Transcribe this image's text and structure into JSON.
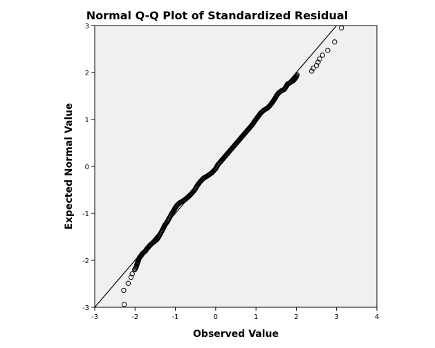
{
  "chart_data": {
    "type": "scatter",
    "title": "Normal Q-Q Plot of Standardized Residual",
    "xlabel": "Observed Value",
    "ylabel": "Expected Normal Value",
    "xlim": [
      -3,
      4
    ],
    "ylim": [
      -3,
      3
    ],
    "xticks": [
      -3,
      -2,
      -1,
      0,
      1,
      2,
      3,
      4
    ],
    "xtick_labels": [
      "-3",
      "-2",
      "-1",
      "0",
      "1",
      "2",
      "3",
      "4"
    ],
    "yticks": [
      -3,
      -2,
      -1,
      0,
      1,
      2,
      3
    ],
    "ytick_labels": [
      "-3",
      "-2",
      "-1",
      "0",
      "1",
      "2",
      "3"
    ],
    "grid": false,
    "background_color": "#f0f0f0",
    "reference_line": {
      "slope": 1,
      "intercept": 0,
      "color": "#000000"
    },
    "marker": {
      "shape": "open-circle",
      "color": "#000000"
    },
    "points": [
      [
        -2.27,
        -2.94
      ],
      [
        -2.28,
        -2.64
      ],
      [
        -2.17,
        -2.49
      ],
      [
        -2.1,
        -2.36
      ],
      [
        -2.07,
        -2.29
      ],
      [
        -2.01,
        -2.2
      ],
      [
        -1.97,
        -2.14
      ],
      [
        -1.95,
        -2.08
      ],
      [
        -1.93,
        -2.03
      ],
      [
        -1.91,
        -1.99
      ],
      [
        -1.9,
        -1.96
      ],
      [
        -1.88,
        -1.93
      ],
      [
        -1.84,
        -1.89
      ],
      [
        -1.82,
        -1.86
      ],
      [
        -1.78,
        -1.83
      ],
      [
        -1.74,
        -1.8
      ],
      [
        -1.71,
        -1.76
      ],
      [
        -1.67,
        -1.72
      ],
      [
        -1.63,
        -1.68
      ],
      [
        -1.58,
        -1.64
      ],
      [
        -1.52,
        -1.6
      ],
      [
        -1.45,
        -1.55
      ],
      [
        -1.4,
        -1.48
      ],
      [
        -1.35,
        -1.4
      ],
      [
        -1.3,
        -1.32
      ],
      [
        -1.26,
        -1.25
      ],
      [
        -1.2,
        -1.18
      ],
      [
        -1.15,
        -1.1
      ],
      [
        -1.1,
        -1.02
      ],
      [
        -1.05,
        -0.95
      ],
      [
        -1.0,
        -0.88
      ],
      [
        -0.95,
        -0.82
      ],
      [
        -0.9,
        -0.78
      ],
      [
        -0.82,
        -0.74
      ],
      [
        -0.75,
        -0.7
      ],
      [
        -0.68,
        -0.65
      ],
      [
        -0.6,
        -0.58
      ],
      [
        -0.52,
        -0.5
      ],
      [
        -0.45,
        -0.4
      ],
      [
        -0.38,
        -0.32
      ],
      [
        -0.3,
        -0.25
      ],
      [
        -0.2,
        -0.2
      ],
      [
        -0.1,
        -0.14
      ],
      [
        0.0,
        -0.05
      ],
      [
        0.05,
        0.03
      ],
      [
        0.12,
        0.1
      ],
      [
        0.2,
        0.18
      ],
      [
        0.28,
        0.26
      ],
      [
        0.36,
        0.34
      ],
      [
        0.44,
        0.42
      ],
      [
        0.52,
        0.5
      ],
      [
        0.6,
        0.58
      ],
      [
        0.68,
        0.66
      ],
      [
        0.76,
        0.74
      ],
      [
        0.84,
        0.82
      ],
      [
        0.92,
        0.9
      ],
      [
        0.98,
        0.98
      ],
      [
        1.05,
        1.06
      ],
      [
        1.12,
        1.14
      ],
      [
        1.2,
        1.2
      ],
      [
        1.28,
        1.24
      ],
      [
        1.35,
        1.3
      ],
      [
        1.42,
        1.38
      ],
      [
        1.48,
        1.46
      ],
      [
        1.52,
        1.52
      ],
      [
        1.57,
        1.57
      ],
      [
        1.63,
        1.61
      ],
      [
        1.7,
        1.64
      ],
      [
        1.75,
        1.7
      ],
      [
        1.78,
        1.75
      ],
      [
        1.93,
        1.83
      ],
      [
        1.97,
        1.87
      ],
      [
        2.0,
        1.91
      ],
      [
        2.02,
        1.95
      ],
      [
        2.38,
        2.03
      ],
      [
        2.42,
        2.09
      ],
      [
        2.5,
        2.15
      ],
      [
        2.54,
        2.22
      ],
      [
        2.58,
        2.29
      ],
      [
        2.65,
        2.37
      ],
      [
        2.78,
        2.47
      ],
      [
        2.95,
        2.65
      ],
      [
        3.12,
        2.95
      ]
    ]
  }
}
